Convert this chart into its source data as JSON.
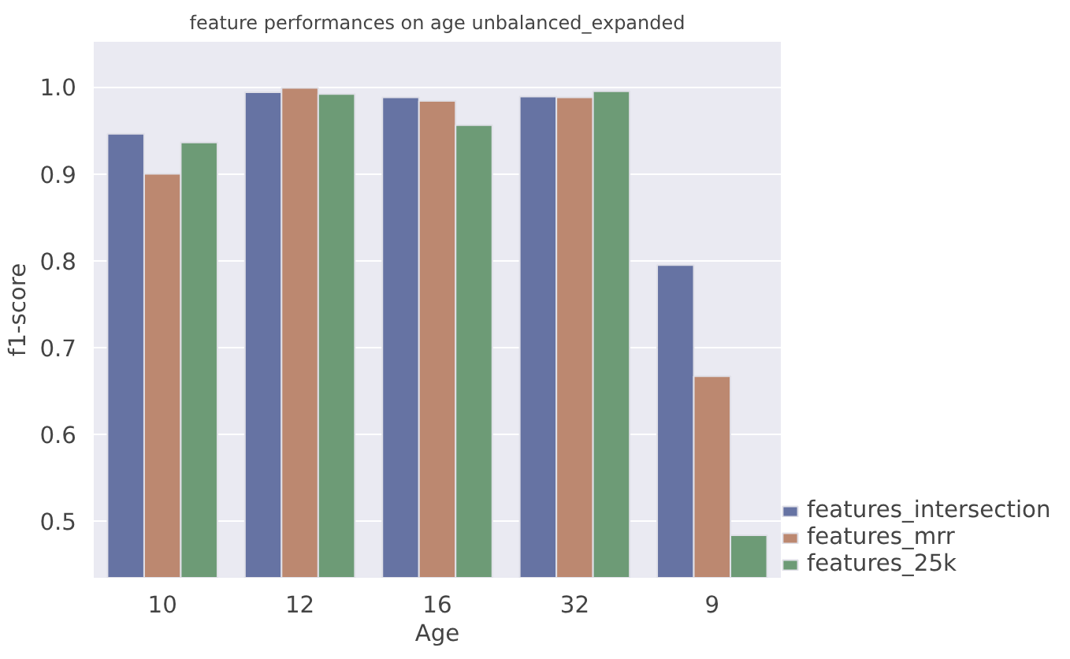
{
  "chart_data": {
    "type": "bar",
    "title": "feature performances on age unbalanced_expanded",
    "xlabel": "Age",
    "ylabel": "f1-score",
    "categories": [
      "10",
      "12",
      "16",
      "32",
      "9"
    ],
    "series": [
      {
        "name": "features_intersection",
        "color": "#6673a3",
        "values": [
          0.946,
          0.994,
          0.988,
          0.989,
          0.795
        ]
      },
      {
        "name": "features_mrr",
        "color": "#bc8870",
        "values": [
          0.9,
          0.999,
          0.984,
          0.988,
          0.667
        ]
      },
      {
        "name": "features_25k",
        "color": "#6d9b76",
        "values": [
          0.936,
          0.992,
          0.956,
          0.995,
          0.484
        ]
      }
    ],
    "ylim": [
      0.435,
      1.052
    ],
    "yticks": [
      {
        "value": 0.5,
        "label": "0.5"
      },
      {
        "value": 0.6,
        "label": "0.6"
      },
      {
        "value": 0.7,
        "label": "0.7"
      },
      {
        "value": 0.8,
        "label": "0.8"
      },
      {
        "value": 0.9,
        "label": "0.9"
      },
      {
        "value": 1.0,
        "label": "1.0"
      }
    ],
    "grid": "y",
    "legend": "bottom right"
  }
}
